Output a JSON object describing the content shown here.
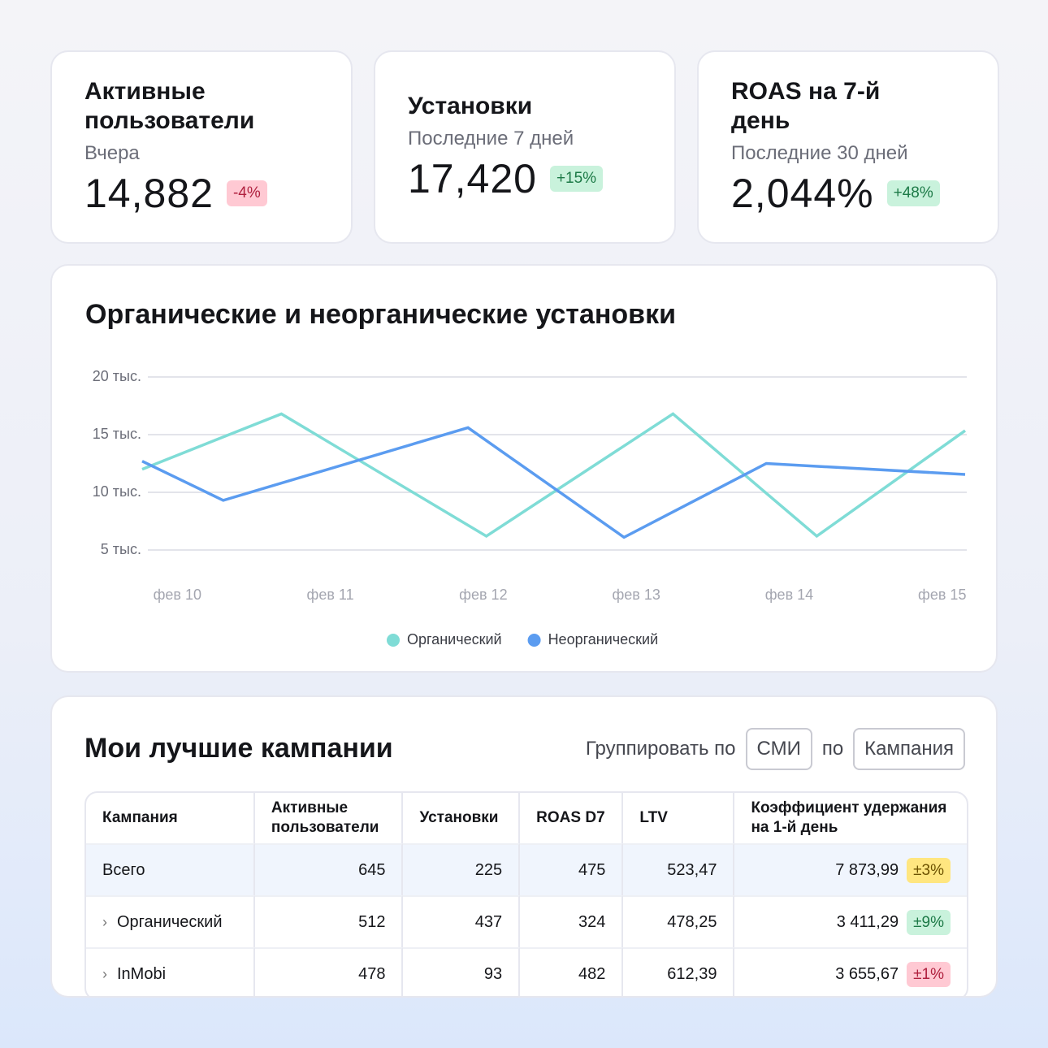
{
  "kpis": [
    {
      "title": "Активные пользователи",
      "subtitle": "Вчера",
      "value": "14,882",
      "delta": "-4%",
      "tone": "red"
    },
    {
      "title": "Установки",
      "subtitle": "Последние 7 дней",
      "value": "17,420",
      "delta": "+15%",
      "tone": "green"
    },
    {
      "title": "ROAS на 7-й день",
      "subtitle": "Последние 30 дней",
      "value": "2,044%",
      "delta": "+48%",
      "tone": "green"
    }
  ],
  "chart_data": {
    "type": "line",
    "title": "Органические и неорганические установки",
    "xlim": [
      9.77,
      15.15
    ],
    "xticks": [
      {
        "value": 10,
        "label": "фев 10"
      },
      {
        "value": 11,
        "label": "фев 11"
      },
      {
        "value": 12,
        "label": "фев 12"
      },
      {
        "value": 13,
        "label": "фев 13"
      },
      {
        "value": 14,
        "label": "фев 14"
      },
      {
        "value": 15,
        "label": "фев 15"
      }
    ],
    "ylim": [
      5,
      20
    ],
    "yticks": [
      {
        "value": 20,
        "label": "20 тыс."
      },
      {
        "value": 15,
        "label": "15 тыс."
      },
      {
        "value": 10,
        "label": "10 тыс."
      },
      {
        "value": 5,
        "label": "5 тыс."
      }
    ],
    "grid": true,
    "series": [
      {
        "name": "Органический",
        "color": "#7fdcd6",
        "x": [
          9.77,
          10.68,
          12.02,
          13.24,
          14.18,
          15.15
        ],
        "values": [
          12.0,
          16.8,
          6.2,
          16.8,
          6.2,
          15.35
        ]
      },
      {
        "name": "Неорганический",
        "color": "#5b9cf0",
        "x": [
          9.77,
          10.3,
          11.9,
          12.92,
          13.85,
          15.15
        ],
        "values": [
          12.7,
          9.3,
          15.6,
          6.1,
          12.5,
          11.55
        ]
      }
    ]
  },
  "table": {
    "title": "Мои лучшие кампании",
    "group_label": "Группировать по",
    "group_first": "СМИ",
    "group_joiner": "по",
    "group_second": "Кампания",
    "columns": [
      "Кампания",
      "Активные пользователи",
      "Установки",
      "ROAS D7",
      "LTV",
      "Коэффициент удержания на 1-й день"
    ],
    "rows": [
      {
        "cells": [
          "Всего",
          "645",
          "225",
          "475",
          "523,47",
          "7 873,99"
        ],
        "badge": "±3%",
        "tone": "yellow",
        "expandable": false
      },
      {
        "cells": [
          "Органический",
          "512",
          "437",
          "324",
          "478,25",
          "3 411,29"
        ],
        "badge": "±9%",
        "tone": "green",
        "expandable": true
      },
      {
        "cells": [
          "InMobi",
          "478",
          "93",
          "482",
          "612,39",
          "3 655,67"
        ],
        "badge": "±1%",
        "tone": "red",
        "expandable": true
      }
    ]
  }
}
